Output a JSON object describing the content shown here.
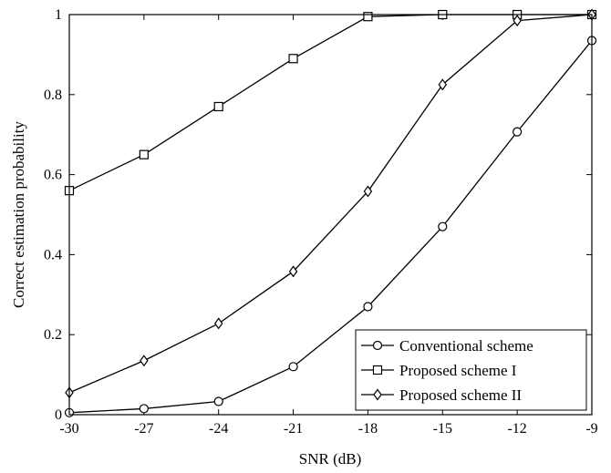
{
  "chart_data": {
    "type": "line",
    "title": "",
    "xlabel": "SNR (dB)",
    "ylabel": "Correct estimation probability",
    "x": [
      -30,
      -27,
      -24,
      -21,
      -18,
      -15,
      -12,
      -9
    ],
    "xlim": [
      -30,
      -9
    ],
    "ylim": [
      0,
      1
    ],
    "xticks": [
      -30,
      -27,
      -24,
      -21,
      -18,
      -15,
      -12,
      -9
    ],
    "yticks": [
      0,
      0.2,
      0.4,
      0.6,
      0.8,
      1
    ],
    "ytick_labels": [
      "0",
      "0.2",
      "0.4",
      "0.6",
      "0.8",
      "1"
    ],
    "grid": false,
    "legend_position": "bottom-right",
    "line_color": "#000000",
    "series": [
      {
        "name": "Conventional scheme",
        "marker": "circle",
        "values": [
          0.005,
          0.015,
          0.033,
          0.12,
          0.27,
          0.47,
          0.707,
          0.935
        ]
      },
      {
        "name": "Proposed scheme I",
        "marker": "square",
        "values": [
          0.56,
          0.65,
          0.77,
          0.89,
          0.995,
          1.0,
          1.0,
          1.0
        ]
      },
      {
        "name": "Proposed scheme II",
        "marker": "diamond",
        "values": [
          0.055,
          0.135,
          0.228,
          0.358,
          0.558,
          0.825,
          0.985,
          1.0
        ]
      }
    ]
  }
}
